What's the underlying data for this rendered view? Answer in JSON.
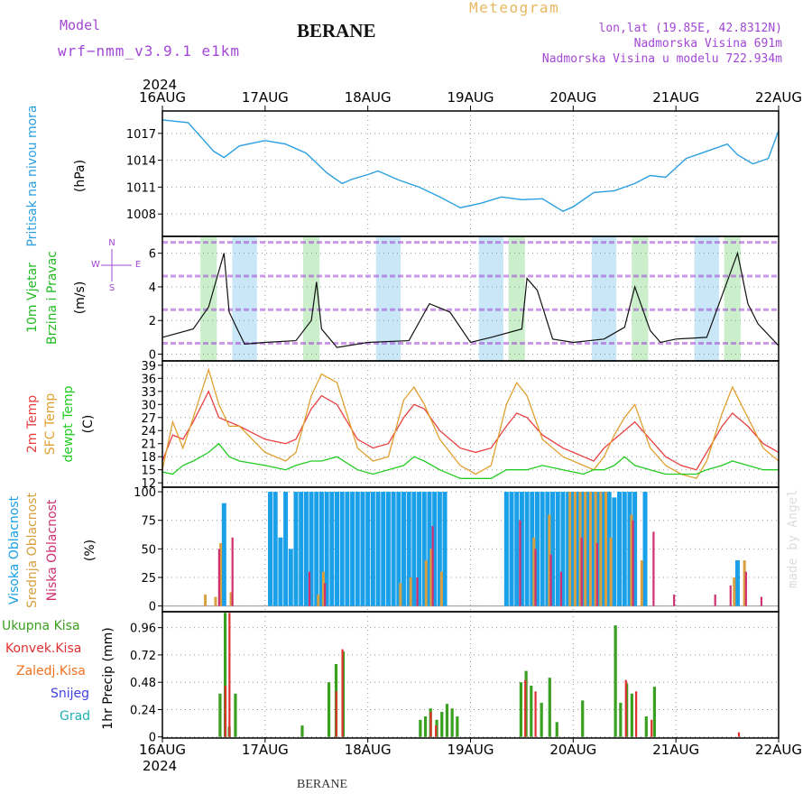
{
  "header": {
    "model_label": "Model",
    "model_name": "wrf−nmm_v3.9.1  e1km",
    "station": "BERANE",
    "chart_kind": "Meteogram",
    "lonlat": "lon,lat (19.85E, 42.8312N)",
    "elevation": "Nadmorska Visina 691m",
    "model_elevation": "Nadmorska Visina u modelu 722.934m",
    "footer_station": "BERANE",
    "credit": "made by Angel"
  },
  "colors": {
    "pressure": "#2a9fe0",
    "wind_label": "#22bb22",
    "wind_compass": "#a347d6",
    "temp2m": "#e84040",
    "sfc_temp": "#e0a030",
    "dewpt": "#22cc22",
    "cloud_high": "#1aa0e8",
    "cloud_mid": "#d8a040",
    "cloud_low": "#d03070",
    "precip_total": "#3aa020",
    "precip_conv": "#e03030",
    "precip_strat": "#f07020",
    "precip_snow": "#4040e0",
    "precip_grad": "#20b0b0",
    "purple": "#a347d6"
  },
  "time_axis": {
    "year": "2024",
    "ticks": [
      "16AUG",
      "17AUG",
      "18AUG",
      "19AUG",
      "20AUG",
      "21AUG",
      "22AUG"
    ]
  },
  "chart_data": [
    {
      "type": "line",
      "title": "",
      "ylabel": "Pritisak na nivou mora",
      "unit": "(hPa)",
      "ylim": [
        1005.5,
        1019.5
      ],
      "yticks": [
        1008,
        1011,
        1014,
        1017
      ],
      "grid": true,
      "x_days": [
        0,
        0.25,
        0.5,
        0.6,
        0.75,
        1.0,
        1.2,
        1.4,
        1.6,
        1.75,
        1.85,
        2.0,
        2.1,
        2.3,
        2.5,
        2.7,
        2.9,
        3.1,
        3.3,
        3.5,
        3.7,
        3.9,
        4.0,
        4.2,
        4.4,
        4.6,
        4.75,
        4.9,
        5.1,
        5.3,
        5.5,
        5.6,
        5.75,
        5.9,
        6.0
      ],
      "series": [
        {
          "values": [
            1018.5,
            1018.2,
            1015.0,
            1014.3,
            1015.6,
            1016.2,
            1015.8,
            1014.8,
            1012.6,
            1011.4,
            1011.9,
            1012.4,
            1012.8,
            1011.8,
            1011.0,
            1009.9,
            1008.7,
            1009.2,
            1009.9,
            1009.6,
            1009.7,
            1008.3,
            1008.8,
            1010.4,
            1010.6,
            1011.4,
            1012.3,
            1012.1,
            1014.2,
            1015.0,
            1015.8,
            1014.6,
            1013.6,
            1014.2,
            1017.3
          ]
        }
      ]
    },
    {
      "type": "line",
      "title": "",
      "ylabel_lines": [
        "10m Vjetar",
        "Brzina i Pravac"
      ],
      "unit": "(m/s)",
      "compass": {
        "north": "N",
        "west": "W",
        "east": "E",
        "south": "S"
      },
      "ylim": [
        -0.4,
        7.0
      ],
      "yticks": [
        0,
        2,
        4,
        6
      ],
      "grid": true,
      "x_days": [
        0,
        0.3,
        0.45,
        0.6,
        0.65,
        0.72,
        0.8,
        1.0,
        1.3,
        1.45,
        1.5,
        1.55,
        1.7,
        2.0,
        2.4,
        2.6,
        2.8,
        3.0,
        3.2,
        3.5,
        3.55,
        3.65,
        3.8,
        4.0,
        4.3,
        4.5,
        4.6,
        4.75,
        4.85,
        5.0,
        5.3,
        5.45,
        5.6,
        5.7,
        5.8,
        6.0
      ],
      "series": [
        {
          "values": [
            1.0,
            1.5,
            2.8,
            6.0,
            2.5,
            1.6,
            0.6,
            0.7,
            0.8,
            2.0,
            4.3,
            1.5,
            0.4,
            0.7,
            0.8,
            3.0,
            2.5,
            0.7,
            1.0,
            1.5,
            4.5,
            3.8,
            0.9,
            0.7,
            0.9,
            1.6,
            4.0,
            1.4,
            0.7,
            0.9,
            1.0,
            3.5,
            6.0,
            3.0,
            1.8,
            0.5
          ]
        }
      ]
    },
    {
      "type": "line",
      "title": "",
      "ylabel_lines": [
        "2m Temp",
        "SFC Temp",
        "dewpt Temp"
      ],
      "unit": "(C)",
      "ylim": [
        11,
        40
      ],
      "yticks": [
        12,
        15,
        18,
        21,
        24,
        27,
        30,
        33,
        36,
        39
      ],
      "grid": true,
      "x_days": [
        0,
        0.1,
        0.2,
        0.3,
        0.45,
        0.55,
        0.65,
        0.75,
        1.0,
        1.2,
        1.3,
        1.45,
        1.55,
        1.7,
        1.9,
        2.05,
        2.2,
        2.35,
        2.45,
        2.55,
        2.7,
        2.9,
        3.05,
        3.2,
        3.35,
        3.45,
        3.55,
        3.7,
        3.9,
        4.1,
        4.2,
        4.3,
        4.4,
        4.5,
        4.6,
        4.75,
        4.9,
        5.05,
        5.2,
        5.3,
        5.45,
        5.55,
        5.7,
        5.85,
        6.0
      ],
      "series": [
        {
          "name": "2m Temp",
          "values": [
            17,
            23,
            22,
            26,
            33,
            27,
            26,
            25,
            22,
            21,
            22,
            29,
            32,
            30,
            22,
            20,
            21,
            27,
            30,
            29,
            24,
            20,
            19,
            20,
            25,
            28,
            27,
            23,
            20,
            18,
            17,
            20,
            22,
            24,
            26,
            22,
            18,
            16,
            15,
            19,
            25,
            28,
            25,
            21,
            19
          ]
        },
        {
          "name": "SFC Temp",
          "values": [
            15,
            26,
            20,
            27,
            38,
            30,
            25,
            25,
            19,
            17,
            19,
            32,
            37,
            35,
            20,
            17,
            18,
            31,
            34,
            30,
            22,
            16,
            14,
            16,
            30,
            35,
            32,
            22,
            18,
            16,
            15,
            18,
            23,
            27,
            30,
            20,
            16,
            14,
            13,
            17,
            28,
            34,
            27,
            20,
            17
          ]
        },
        {
          "name": "dewpt Temp",
          "values": [
            14.5,
            14,
            16,
            17,
            19,
            21,
            18,
            17,
            16,
            15,
            16,
            17,
            17,
            18,
            15,
            14,
            15,
            16,
            18,
            17,
            15,
            13,
            13,
            13,
            15,
            15,
            15,
            16,
            15,
            14,
            15,
            15,
            16,
            18,
            16,
            15,
            14,
            14,
            14,
            15,
            16,
            17,
            16,
            15,
            15
          ]
        }
      ]
    },
    {
      "type": "bar",
      "title": "",
      "ylabel_lines": [
        "Visoka Oblacnost",
        "Srednja Oblacnost",
        "Niska Oblacnost"
      ],
      "unit": "(%)",
      "ylim": [
        -5,
        104
      ],
      "yticks": [
        0,
        25,
        50,
        75,
        100
      ],
      "grid": true,
      "series": [
        {
          "name": "Visoka Oblacnost",
          "bars": [
            [
              0.6,
              90
            ],
            [
              1.05,
              100
            ],
            [
              1.1,
              100
            ],
            [
              1.15,
              60
            ],
            [
              1.2,
              100
            ],
            [
              1.25,
              50
            ],
            [
              1.3,
              100
            ],
            [
              1.35,
              100
            ],
            [
              1.4,
              100
            ],
            [
              1.45,
              100
            ],
            [
              1.5,
              100
            ],
            [
              1.55,
              100
            ],
            [
              1.6,
              100
            ],
            [
              1.65,
              100
            ],
            [
              1.7,
              100
            ],
            [
              1.75,
              100
            ],
            [
              1.8,
              100
            ],
            [
              1.85,
              100
            ],
            [
              1.9,
              100
            ],
            [
              1.95,
              100
            ],
            [
              2.0,
              100
            ],
            [
              2.05,
              100
            ],
            [
              2.1,
              100
            ],
            [
              2.15,
              100
            ],
            [
              2.2,
              100
            ],
            [
              2.25,
              100
            ],
            [
              2.3,
              100
            ],
            [
              2.35,
              100
            ],
            [
              2.4,
              100
            ],
            [
              2.45,
              100
            ],
            [
              2.5,
              100
            ],
            [
              2.55,
              100
            ],
            [
              2.6,
              100
            ],
            [
              2.65,
              100
            ],
            [
              2.7,
              100
            ],
            [
              2.75,
              100
            ],
            [
              3.35,
              100
            ],
            [
              3.4,
              100
            ],
            [
              3.45,
              100
            ],
            [
              3.5,
              100
            ],
            [
              3.55,
              100
            ],
            [
              3.6,
              100
            ],
            [
              3.65,
              100
            ],
            [
              3.7,
              100
            ],
            [
              3.75,
              100
            ],
            [
              3.8,
              100
            ],
            [
              3.85,
              100
            ],
            [
              3.9,
              100
            ],
            [
              3.95,
              100
            ],
            [
              4.0,
              100
            ],
            [
              4.05,
              100
            ],
            [
              4.1,
              100
            ],
            [
              4.15,
              100
            ],
            [
              4.2,
              100
            ],
            [
              4.25,
              100
            ],
            [
              4.3,
              100
            ],
            [
              4.35,
              100
            ],
            [
              4.4,
              95
            ],
            [
              4.45,
              100
            ],
            [
              4.5,
              100
            ],
            [
              4.55,
              100
            ],
            [
              4.6,
              100
            ],
            [
              4.7,
              100
            ],
            [
              5.6,
              40
            ]
          ]
        },
        {
          "name": "Srednja Oblacnost",
          "bars": [
            [
              0.4,
              10
            ],
            [
              0.5,
              8
            ],
            [
              0.55,
              55
            ],
            [
              0.65,
              12
            ],
            [
              1.5,
              10
            ],
            [
              1.55,
              30
            ],
            [
              2.3,
              20
            ],
            [
              2.4,
              25
            ],
            [
              2.55,
              40
            ],
            [
              2.6,
              50
            ],
            [
              2.7,
              30
            ],
            [
              3.6,
              60
            ],
            [
              3.75,
              80
            ],
            [
              3.95,
              100
            ],
            [
              4.0,
              100
            ],
            [
              4.05,
              100
            ],
            [
              4.1,
              100
            ],
            [
              4.15,
              100
            ],
            [
              4.2,
              100
            ],
            [
              4.25,
              100
            ],
            [
              4.3,
              100
            ],
            [
              4.35,
              60
            ],
            [
              4.55,
              80
            ],
            [
              4.65,
              40
            ],
            [
              5.55,
              25
            ],
            [
              5.65,
              40
            ]
          ]
        },
        {
          "name": "Niska Oblacnost",
          "bars": [
            [
              0.57,
              50
            ],
            [
              0.7,
              60
            ],
            [
              1.45,
              30
            ],
            [
              1.6,
              20
            ],
            [
              2.5,
              25
            ],
            [
              2.65,
              70
            ],
            [
              3.5,
              75
            ],
            [
              3.65,
              50
            ],
            [
              3.8,
              45
            ],
            [
              3.9,
              30
            ],
            [
              4.1,
              60
            ],
            [
              4.25,
              55
            ],
            [
              4.6,
              75
            ],
            [
              4.8,
              65
            ],
            [
              5.0,
              10
            ],
            [
              5.4,
              10
            ],
            [
              5.55,
              18
            ],
            [
              5.7,
              30
            ],
            [
              5.85,
              8
            ]
          ]
        }
      ]
    },
    {
      "type": "bar",
      "title": "",
      "ylabel": "1hr Precip",
      "unit": "(mm)",
      "legend": [
        "Ukupna Kisa",
        "Konvek.Kisa",
        "Zaledj.Kisa",
        "Snijeg",
        "Grad"
      ],
      "ylim": [
        -0.01,
        1.1
      ],
      "yticks": [
        0,
        0.24,
        0.48,
        0.72,
        0.96
      ],
      "ytick_labels": [
        "0",
        "0.24",
        "0.48",
        "0.72",
        "0.96"
      ],
      "grid": true,
      "series": [
        {
          "name": "Ukupna Kisa",
          "bars": [
            [
              0.57,
              0.38
            ],
            [
              0.62,
              1.09
            ],
            [
              0.66,
              0.09
            ],
            [
              0.72,
              0.38
            ],
            [
              1.37,
              0.1
            ],
            [
              1.63,
              0.48
            ],
            [
              1.7,
              0.64
            ],
            [
              1.77,
              0.75
            ],
            [
              2.52,
              0.15
            ],
            [
              2.57,
              0.18
            ],
            [
              2.62,
              0.25
            ],
            [
              2.68,
              0.15
            ],
            [
              2.73,
              0.22
            ],
            [
              2.78,
              0.29
            ],
            [
              2.83,
              0.25
            ],
            [
              2.88,
              0.18
            ],
            [
              3.5,
              0.48
            ],
            [
              3.55,
              0.58
            ],
            [
              3.6,
              0.45
            ],
            [
              3.7,
              0.3
            ],
            [
              3.78,
              0.52
            ],
            [
              3.85,
              0.13
            ],
            [
              4.1,
              0.32
            ],
            [
              4.42,
              0.98
            ],
            [
              4.47,
              0.3
            ],
            [
              4.53,
              0.47
            ],
            [
              4.58,
              0.38
            ],
            [
              4.72,
              0.18
            ],
            [
              4.8,
              0.44
            ]
          ]
        },
        {
          "name": "Konvek.Kisa",
          "bars": [
            [
              0.6,
              0.45
            ],
            [
              0.64,
              1.09
            ],
            [
              1.68,
              0.4
            ],
            [
              1.74,
              0.77
            ],
            [
              2.6,
              0.22
            ],
            [
              2.65,
              0.1
            ],
            [
              3.52,
              0.5
            ],
            [
              3.62,
              0.4
            ],
            [
              4.5,
              0.5
            ],
            [
              4.6,
              0.4
            ],
            [
              4.75,
              0.15
            ],
            [
              5.6,
              0.04
            ]
          ]
        }
      ]
    }
  ]
}
